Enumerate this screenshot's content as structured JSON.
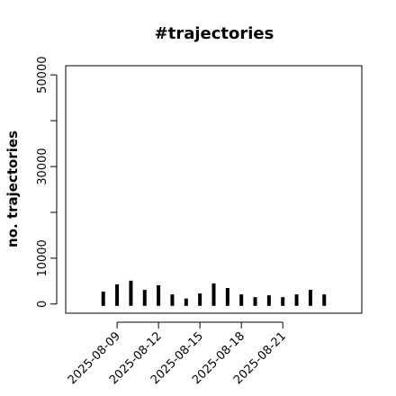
{
  "chart_data": {
    "type": "bar",
    "title": "#trajectories",
    "y_label": "no. trajectories",
    "x": [
      "2025-08-08",
      "2025-08-09",
      "2025-08-10",
      "2025-08-11",
      "2025-08-12",
      "2025-08-13",
      "2025-08-14",
      "2025-08-15",
      "2025-08-16",
      "2025-08-17",
      "2025-08-18",
      "2025-08-19",
      "2025-08-20",
      "2025-08-21",
      "2025-08-22",
      "2025-08-23",
      "2025-08-24"
    ],
    "values": [
      2700,
      4300,
      5100,
      3100,
      4100,
      2100,
      1200,
      2300,
      4500,
      3500,
      2100,
      1500,
      1900,
      1500,
      2100,
      3100,
      2100
    ],
    "color": "#000000",
    "xticks": [
      "2025-08-09",
      "2025-08-12",
      "2025-08-15",
      "2025-08-18",
      "2025-08-21"
    ],
    "ylim": [
      -2000,
      52000
    ],
    "yticks": [
      0,
      10000,
      {
        "value": 20000,
        "label": null
      },
      30000,
      {
        "value": 40000,
        "label": null
      },
      50000
    ]
  }
}
